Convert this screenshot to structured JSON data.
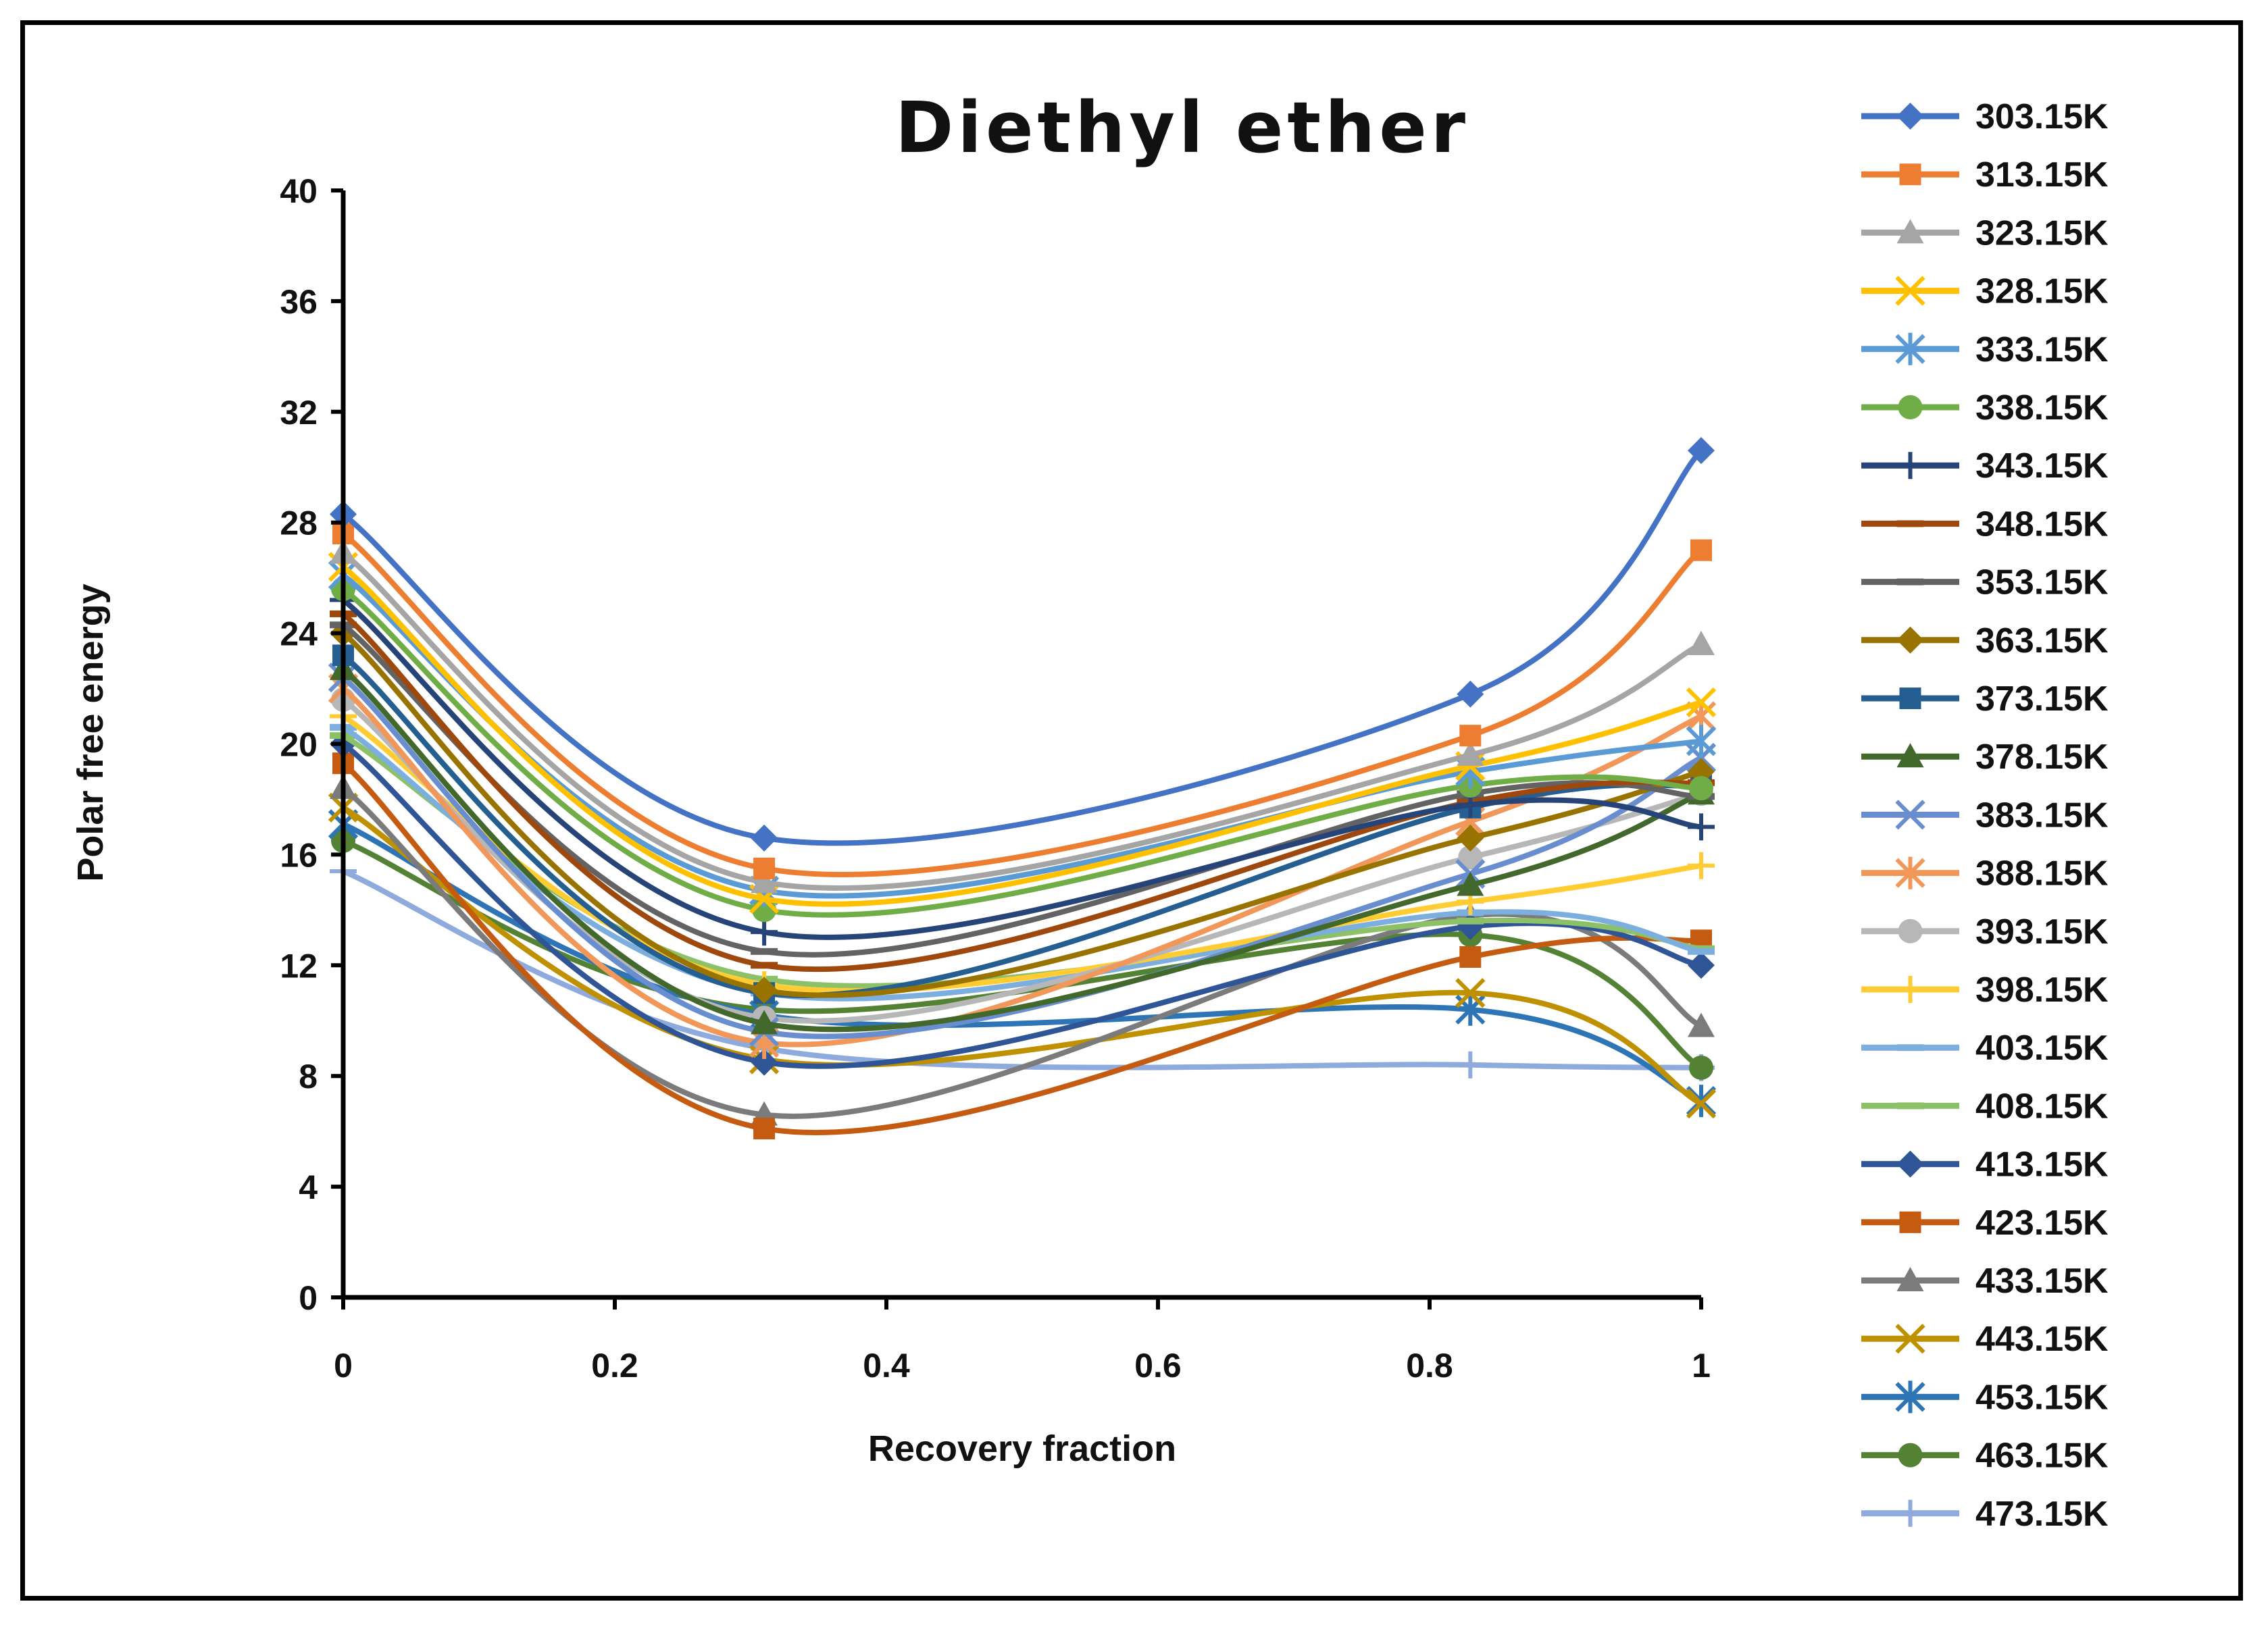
{
  "chart_data": {
    "type": "line",
    "title": "Diethyl ether",
    "xlabel": "Recovery fraction",
    "ylabel": "Polar free energy",
    "xlim": [
      0,
      1
    ],
    "ylim": [
      0,
      40
    ],
    "xticks": [
      "0",
      "0.2",
      "0.4",
      "0.6",
      "0.8",
      "1"
    ],
    "yticks": [
      "0",
      "4",
      "8",
      "12",
      "16",
      "20",
      "24",
      "28",
      "32",
      "36",
      "40"
    ],
    "x": [
      0,
      0.31,
      0.83,
      1
    ],
    "grid": false,
    "legend_position": "right",
    "series": [
      {
        "name": "303.15K",
        "values": [
          28.3,
          16.6,
          21.8,
          30.6
        ],
        "color": "#4472C4",
        "marker": "diamond"
      },
      {
        "name": "313.15K",
        "values": [
          27.6,
          15.5,
          20.3,
          27.0
        ],
        "color": "#ED7D31",
        "marker": "square"
      },
      {
        "name": "323.15K",
        "values": [
          26.9,
          15.0,
          19.6,
          23.6
        ],
        "color": "#A5A5A5",
        "marker": "triangle"
      },
      {
        "name": "328.15K",
        "values": [
          26.4,
          14.4,
          19.2,
          21.5
        ],
        "color": "#FFC000",
        "marker": "x"
      },
      {
        "name": "333.15K",
        "values": [
          26.1,
          14.7,
          19.0,
          20.1
        ],
        "color": "#5B9BD5",
        "marker": "star"
      },
      {
        "name": "338.15K",
        "values": [
          25.6,
          14.0,
          18.5,
          18.4
        ],
        "color": "#70AD47",
        "marker": "circle"
      },
      {
        "name": "343.15K",
        "values": [
          25.2,
          13.2,
          17.8,
          17.0
        ],
        "color": "#264478",
        "marker": "plus"
      },
      {
        "name": "348.15K",
        "values": [
          24.7,
          12.0,
          17.9,
          18.6
        ],
        "color": "#9E480E",
        "marker": "dash"
      },
      {
        "name": "353.15K",
        "values": [
          24.3,
          12.5,
          18.2,
          18.1
        ],
        "color": "#636363",
        "marker": "dash"
      },
      {
        "name": "363.15K",
        "values": [
          24.0,
          11.1,
          16.6,
          19.0
        ],
        "color": "#997300",
        "marker": "diamond"
      },
      {
        "name": "373.15K",
        "values": [
          23.2,
          11.0,
          17.7,
          18.5
        ],
        "color": "#255E91",
        "marker": "square"
      },
      {
        "name": "378.15K",
        "values": [
          22.7,
          9.9,
          14.9,
          18.2
        ],
        "color": "#43682B",
        "marker": "triangle"
      },
      {
        "name": "383.15K",
        "values": [
          22.4,
          9.6,
          15.3,
          19.5
        ],
        "color": "#698ED0",
        "marker": "x"
      },
      {
        "name": "388.15K",
        "values": [
          22.0,
          9.2,
          17.2,
          21.0
        ],
        "color": "#F1975A",
        "marker": "star"
      },
      {
        "name": "393.15K",
        "values": [
          21.6,
          10.1,
          15.9,
          18.2
        ],
        "color": "#B7B7B7",
        "marker": "circle"
      },
      {
        "name": "398.15K",
        "values": [
          21.0,
          11.3,
          14.3,
          15.6
        ],
        "color": "#FFCD33",
        "marker": "plus"
      },
      {
        "name": "403.15K",
        "values": [
          20.6,
          11.0,
          13.9,
          12.5
        ],
        "color": "#7CAFDD",
        "marker": "dash"
      },
      {
        "name": "408.15K",
        "values": [
          20.3,
          11.5,
          13.6,
          12.6
        ],
        "color": "#8CC168",
        "marker": "dash"
      },
      {
        "name": "413.15K",
        "values": [
          20.0,
          8.5,
          13.4,
          12.0
        ],
        "color": "#2F5597",
        "marker": "diamond"
      },
      {
        "name": "423.15K",
        "values": [
          19.3,
          6.1,
          12.3,
          12.9
        ],
        "color": "#C55A11",
        "marker": "square"
      },
      {
        "name": "433.15K",
        "values": [
          18.4,
          6.6,
          13.8,
          9.8
        ],
        "color": "#7B7B7B",
        "marker": "triangle"
      },
      {
        "name": "443.15K",
        "values": [
          17.7,
          8.6,
          11.0,
          7.0
        ],
        "color": "#BF9000",
        "marker": "x"
      },
      {
        "name": "453.15K",
        "values": [
          17.1,
          10.2,
          10.4,
          7.1
        ],
        "color": "#2E75B6",
        "marker": "star"
      },
      {
        "name": "463.15K",
        "values": [
          16.5,
          10.4,
          13.1,
          8.3
        ],
        "color": "#548235",
        "marker": "circle"
      },
      {
        "name": "473.15K",
        "values": [
          15.4,
          9.0,
          8.4,
          8.3
        ],
        "color": "#8FAADC",
        "marker": "plus"
      }
    ]
  }
}
